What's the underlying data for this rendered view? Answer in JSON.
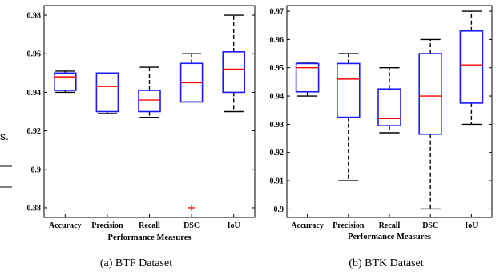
{
  "stray_text": "s.",
  "chart_data": [
    {
      "type": "box",
      "caption": "(a) BTF Dataset",
      "xlabel": "Performance Measures",
      "ylabel": "",
      "categories": [
        "Accuracy",
        "Precision",
        "Recall",
        "DSC",
        "IoU"
      ],
      "ylim": [
        0.875,
        0.985
      ],
      "yticks": [
        "0.98",
        "0.96",
        "0.94",
        "0.92",
        "0.9",
        "0.88"
      ],
      "ytick_values": [
        0.98,
        0.96,
        0.94,
        0.92,
        0.9,
        0.88
      ],
      "boxes": [
        {
          "whisker_low": 0.94,
          "q1": 0.941,
          "median": 0.948,
          "q3": 0.95,
          "whisker_high": 0.951,
          "outliers": []
        },
        {
          "whisker_low": 0.929,
          "q1": 0.93,
          "median": 0.943,
          "q3": 0.95,
          "whisker_high": 0.95,
          "outliers": []
        },
        {
          "whisker_low": 0.927,
          "q1": 0.93,
          "median": 0.936,
          "q3": 0.941,
          "whisker_high": 0.953,
          "outliers": []
        },
        {
          "whisker_low": 0.935,
          "q1": 0.935,
          "median": 0.945,
          "q3": 0.955,
          "whisker_high": 0.96,
          "outliers": [
            0.88
          ]
        },
        {
          "whisker_low": 0.93,
          "q1": 0.94,
          "median": 0.952,
          "q3": 0.961,
          "whisker_high": 0.98,
          "outliers": []
        }
      ],
      "colors": {
        "box": "#1a1aff",
        "median": "#ff0000",
        "whisker": "#000000",
        "outlier": "#ff0000"
      }
    },
    {
      "type": "box",
      "caption": "(b) BTK Dataset",
      "xlabel": "Performance Measures",
      "ylabel": "",
      "categories": [
        "Accuracy",
        "Precision",
        "Recall",
        "DSC",
        "IoU"
      ],
      "ylim": [
        0.897,
        0.972
      ],
      "yticks": [
        "0.97",
        "0.96",
        "0.95",
        "0.94",
        "0.93",
        "0.92",
        "0.91",
        "0.9"
      ],
      "ytick_values": [
        0.97,
        0.96,
        0.95,
        0.94,
        0.93,
        0.92,
        0.91,
        0.9
      ],
      "boxes": [
        {
          "whisker_low": 0.94,
          "q1": 0.9415,
          "median": 0.95,
          "q3": 0.9515,
          "whisker_high": 0.952,
          "outliers": []
        },
        {
          "whisker_low": 0.91,
          "q1": 0.9325,
          "median": 0.946,
          "q3": 0.9515,
          "whisker_high": 0.955,
          "outliers": []
        },
        {
          "whisker_low": 0.927,
          "q1": 0.9295,
          "median": 0.932,
          "q3": 0.9425,
          "whisker_high": 0.95,
          "outliers": []
        },
        {
          "whisker_low": 0.9,
          "q1": 0.9265,
          "median": 0.94,
          "q3": 0.955,
          "whisker_high": 0.96,
          "outliers": []
        },
        {
          "whisker_low": 0.93,
          "q1": 0.9375,
          "median": 0.951,
          "q3": 0.963,
          "whisker_high": 0.97,
          "outliers": []
        }
      ],
      "colors": {
        "box": "#1a1aff",
        "median": "#ff0000",
        "whisker": "#000000",
        "outlier": "#ff0000"
      }
    }
  ]
}
